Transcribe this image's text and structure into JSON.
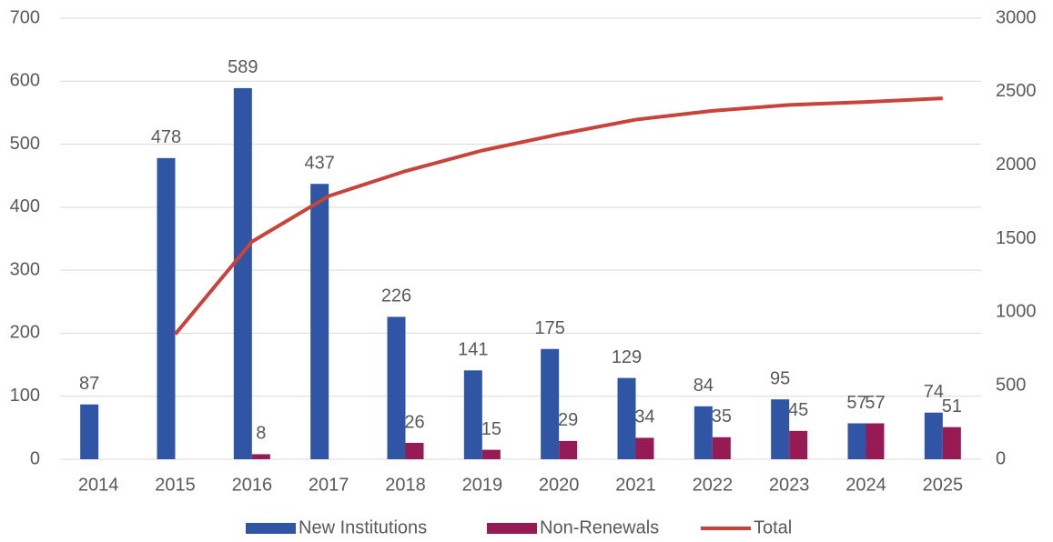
{
  "chart_data": {
    "type": "bar",
    "categories": [
      "2014",
      "2015",
      "2016",
      "2017",
      "2018",
      "2019",
      "2020",
      "2021",
      "2022",
      "2023",
      "2024",
      "2025"
    ],
    "series": [
      {
        "name": "New Institutions",
        "color": "#2f55a4",
        "values": [
          87,
          478,
          589,
          437,
          226,
          141,
          175,
          129,
          84,
          95,
          57,
          74
        ]
      },
      {
        "name": "Non-Renewals",
        "color": "#961b55",
        "values": [
          null,
          null,
          8,
          null,
          26,
          15,
          29,
          34,
          35,
          45,
          57,
          51
        ]
      },
      {
        "name": "Total",
        "type": "line",
        "axis": "y2",
        "color": "#c8443b",
        "values": [
          null,
          850,
          1480,
          1790,
          1960,
          2100,
          2210,
          2310,
          2370,
          2410,
          2430,
          2455
        ]
      }
    ],
    "ylim": [
      0,
      700
    ],
    "yticks": [
      0,
      100,
      200,
      300,
      400,
      500,
      600,
      700
    ],
    "y2lim": [
      0,
      3000
    ],
    "y2ticks": [
      0,
      500,
      1000,
      1500,
      2000,
      2500,
      3000
    ],
    "grid": true,
    "legend": "bottom"
  }
}
